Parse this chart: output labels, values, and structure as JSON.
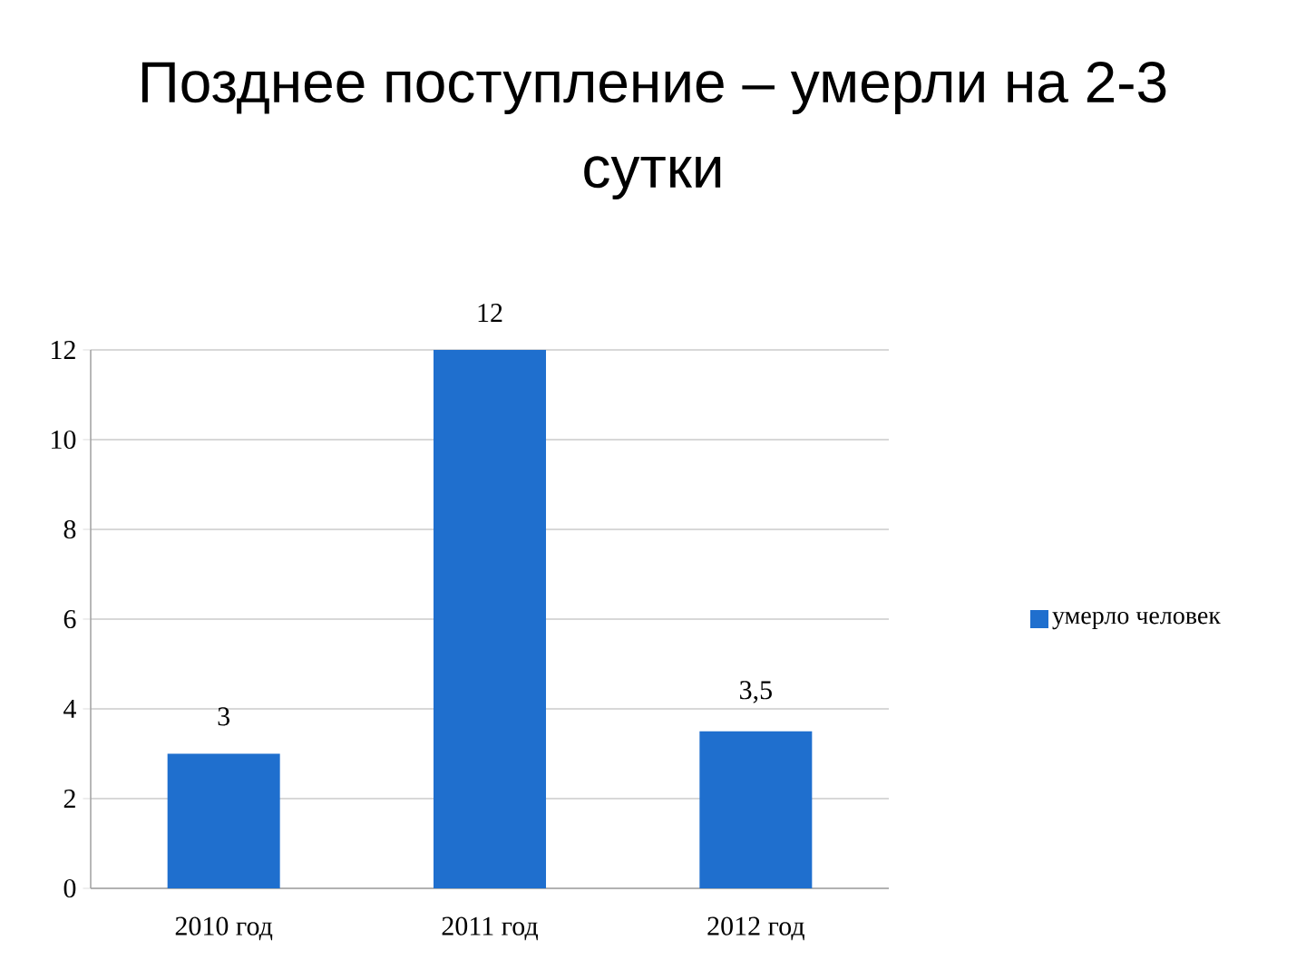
{
  "chart_data": {
    "type": "bar",
    "title": "Позднее поступление – умерли на 2-3 сутки",
    "categories": [
      "2010 год",
      "2011 год",
      "2012 год"
    ],
    "series": [
      {
        "name": "умерло человек",
        "color": "#1f6fce",
        "values": [
          3,
          12,
          3.5
        ],
        "value_labels": [
          "3",
          "12",
          "3,5"
        ]
      }
    ],
    "ylim": [
      0,
      12
    ],
    "yticks": [
      0,
      2,
      4,
      6,
      8,
      10,
      12
    ],
    "grid": "y",
    "legend": "right"
  }
}
